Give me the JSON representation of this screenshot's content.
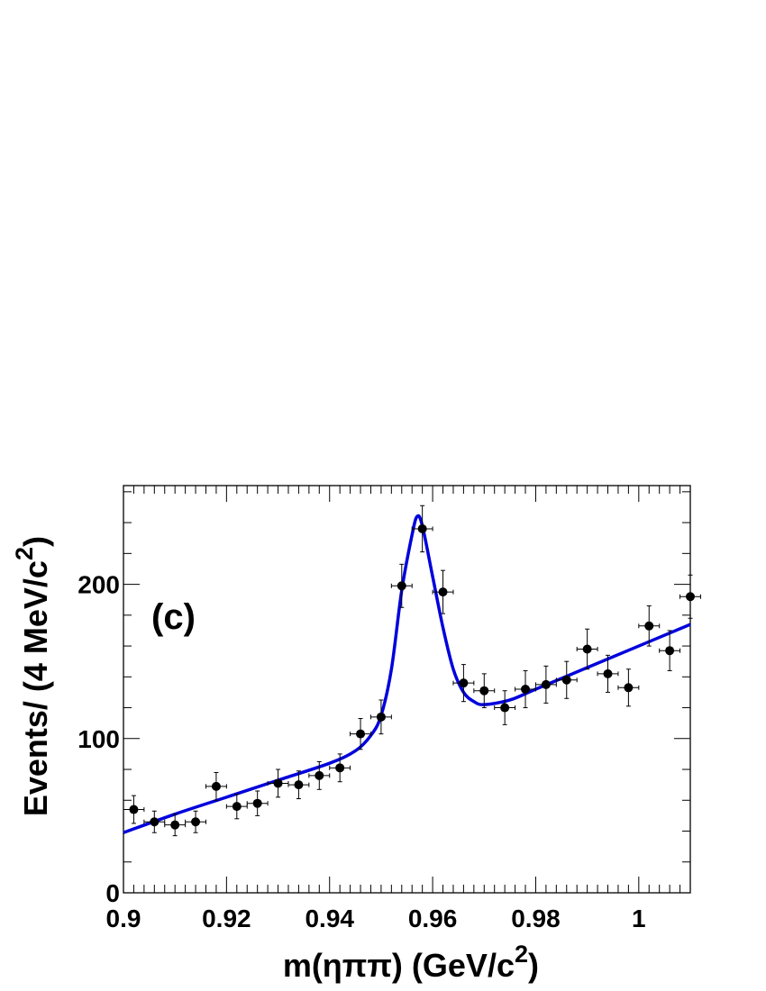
{
  "chart_data": {
    "type": "scatter",
    "panel_label": "(c)",
    "xlabel": "m(ηππ) (GeV/c",
    "xlabel_sup": "2",
    "xlabel_end": ")",
    "ylabel": "Events/ (4 MeV/c",
    "ylabel_sup": "2",
    "ylabel_end": ")",
    "xlim": [
      0.9,
      1.01
    ],
    "ylim": [
      0,
      264
    ],
    "x_ticks": [
      0.9,
      0.92,
      0.94,
      0.96,
      0.98,
      1
    ],
    "x_tick_labels": [
      "0.9",
      "0.92",
      "0.94",
      "0.96",
      "0.98",
      "1"
    ],
    "y_ticks": [
      0,
      100,
      200
    ],
    "y_tick_labels": [
      "0",
      "100",
      "200"
    ],
    "grid": false,
    "series": [
      {
        "type": "scatter",
        "x_err": 0.002,
        "color": "#000000",
        "points": [
          {
            "x": 0.902,
            "y": 54,
            "err": 9
          },
          {
            "x": 0.906,
            "y": 46,
            "err": 7
          },
          {
            "x": 0.91,
            "y": 44,
            "err": 7
          },
          {
            "x": 0.914,
            "y": 46,
            "err": 7
          },
          {
            "x": 0.918,
            "y": 69,
            "err": 9
          },
          {
            "x": 0.922,
            "y": 56,
            "err": 8
          },
          {
            "x": 0.926,
            "y": 58,
            "err": 8
          },
          {
            "x": 0.93,
            "y": 71,
            "err": 9
          },
          {
            "x": 0.934,
            "y": 70,
            "err": 9
          },
          {
            "x": 0.938,
            "y": 76,
            "err": 9
          },
          {
            "x": 0.942,
            "y": 81,
            "err": 9
          },
          {
            "x": 0.946,
            "y": 103,
            "err": 10
          },
          {
            "x": 0.95,
            "y": 114,
            "err": 11
          },
          {
            "x": 0.954,
            "y": 199,
            "err": 14
          },
          {
            "x": 0.958,
            "y": 236,
            "err": 15
          },
          {
            "x": 0.962,
            "y": 195,
            "err": 14
          },
          {
            "x": 0.966,
            "y": 136,
            "err": 12
          },
          {
            "x": 0.97,
            "y": 131,
            "err": 11
          },
          {
            "x": 0.974,
            "y": 120,
            "err": 11
          },
          {
            "x": 0.978,
            "y": 132,
            "err": 12
          },
          {
            "x": 0.982,
            "y": 135,
            "err": 12
          },
          {
            "x": 0.986,
            "y": 138,
            "err": 12
          },
          {
            "x": 0.99,
            "y": 158,
            "err": 13
          },
          {
            "x": 0.994,
            "y": 142,
            "err": 12
          },
          {
            "x": 0.998,
            "y": 133,
            "err": 12
          },
          {
            "x": 1.002,
            "y": 173,
            "err": 13
          },
          {
            "x": 1.006,
            "y": 157,
            "err": 13
          },
          {
            "x": 1.01,
            "y": 192,
            "err": 14
          }
        ]
      },
      {
        "type": "line",
        "color": "#0000dd",
        "points": [
          {
            "x": 0.9,
            "y": 39
          },
          {
            "x": 0.91,
            "y": 51
          },
          {
            "x": 0.92,
            "y": 62
          },
          {
            "x": 0.93,
            "y": 73
          },
          {
            "x": 0.94,
            "y": 84
          },
          {
            "x": 0.945,
            "y": 92
          },
          {
            "x": 0.948,
            "y": 102
          },
          {
            "x": 0.95,
            "y": 115
          },
          {
            "x": 0.952,
            "y": 145
          },
          {
            "x": 0.954,
            "y": 196
          },
          {
            "x": 0.956,
            "y": 232
          },
          {
            "x": 0.957,
            "y": 244
          },
          {
            "x": 0.958,
            "y": 238
          },
          {
            "x": 0.96,
            "y": 205
          },
          {
            "x": 0.962,
            "y": 172
          },
          {
            "x": 0.964,
            "y": 145
          },
          {
            "x": 0.966,
            "y": 130
          },
          {
            "x": 0.968,
            "y": 124
          },
          {
            "x": 0.97,
            "y": 122
          },
          {
            "x": 0.975,
            "y": 125
          },
          {
            "x": 0.98,
            "y": 132
          },
          {
            "x": 0.99,
            "y": 146
          },
          {
            "x": 1.0,
            "y": 160
          },
          {
            "x": 1.01,
            "y": 174
          }
        ]
      }
    ]
  }
}
